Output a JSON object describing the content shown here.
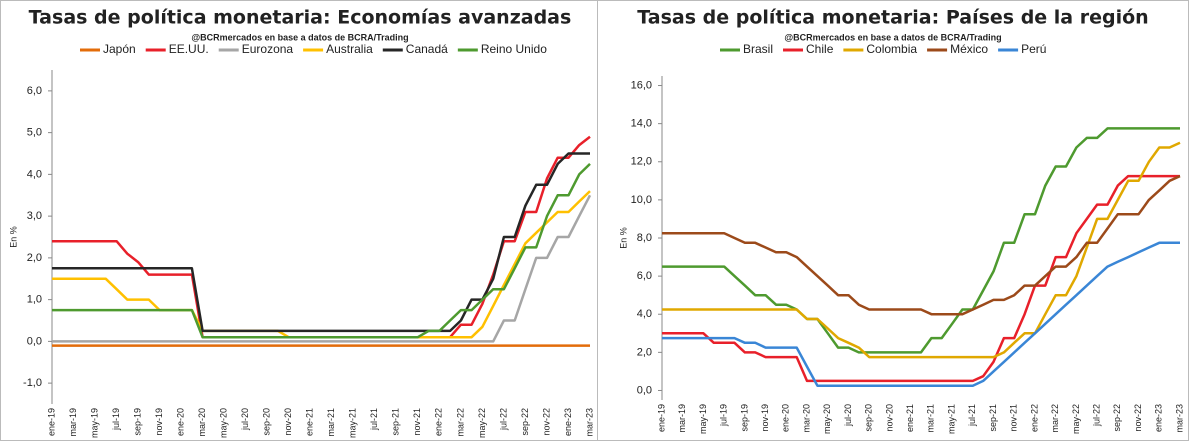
{
  "chart_data": [
    {
      "type": "line",
      "title": "Tasas de política monetaria: Economías avanzadas",
      "subtitle": "@BCRmercados en base a datos de BCRA/Trading",
      "y_label": "En %",
      "categories": [
        "ene-19",
        null,
        "mar-19",
        null,
        "may-19",
        null,
        "jul-19",
        null,
        "sep-19",
        null,
        "nov-19",
        null,
        "ene-20",
        null,
        "mar-20",
        null,
        "may-20",
        null,
        "jul-20",
        null,
        "sep-20",
        null,
        "nov-20",
        null,
        "ene-21",
        null,
        "mar-21",
        null,
        "may-21",
        null,
        "jul-21",
        null,
        "sep-21",
        null,
        "nov-21",
        null,
        "ene-22",
        null,
        "mar-22",
        null,
        "may-22",
        null,
        "jul-22",
        null,
        "sep-22",
        null,
        "nov-22",
        null,
        "ene-23",
        null,
        "mar-23"
      ],
      "ylim": [
        -1.5,
        6.5
      ],
      "yticks": [
        {
          "value": -1,
          "label": "-1,0"
        },
        {
          "value": 0,
          "label": "0,0"
        },
        {
          "value": 1,
          "label": "1,0"
        },
        {
          "value": 2,
          "label": "2,0"
        },
        {
          "value": 3,
          "label": "3,0"
        },
        {
          "value": 4,
          "label": "4,0"
        },
        {
          "value": 5,
          "label": "5,0"
        },
        {
          "value": 6,
          "label": "6,0"
        }
      ],
      "series": [
        {
          "name": "Japón",
          "color": "#e36c0a",
          "values": [
            -0.1,
            -0.1,
            -0.1,
            -0.1,
            -0.1,
            -0.1,
            -0.1,
            -0.1,
            -0.1,
            -0.1,
            -0.1,
            -0.1,
            -0.1,
            -0.1,
            -0.1,
            -0.1,
            -0.1,
            -0.1,
            -0.1,
            -0.1,
            -0.1,
            -0.1,
            -0.1,
            -0.1,
            -0.1,
            -0.1,
            -0.1,
            -0.1,
            -0.1,
            -0.1,
            -0.1,
            -0.1,
            -0.1,
            -0.1,
            -0.1,
            -0.1,
            -0.1,
            -0.1,
            -0.1,
            -0.1,
            -0.1,
            -0.1,
            -0.1,
            -0.1,
            -0.1,
            -0.1,
            -0.1,
            -0.1,
            -0.1,
            -0.1,
            -0.1
          ]
        },
        {
          "name": "EE.UU.",
          "color": "#e8202a",
          "values": [
            2.4,
            2.4,
            2.4,
            2.4,
            2.4,
            2.4,
            2.4,
            2.1,
            1.9,
            1.6,
            1.6,
            1.6,
            1.6,
            1.6,
            0.1,
            0.1,
            0.1,
            0.1,
            0.1,
            0.1,
            0.1,
            0.1,
            0.1,
            0.1,
            0.1,
            0.1,
            0.1,
            0.1,
            0.1,
            0.1,
            0.1,
            0.1,
            0.1,
            0.1,
            0.1,
            0.1,
            0.1,
            0.1,
            0.4,
            0.4,
            0.9,
            1.6,
            2.4,
            2.4,
            3.1,
            3.1,
            3.9,
            4.4,
            4.4,
            4.7,
            4.9
          ]
        },
        {
          "name": "Eurozona",
          "color": "#a6a6a6",
          "values": [
            0,
            0,
            0,
            0,
            0,
            0,
            0,
            0,
            0,
            0,
            0,
            0,
            0,
            0,
            0,
            0,
            0,
            0,
            0,
            0,
            0,
            0,
            0,
            0,
            0,
            0,
            0,
            0,
            0,
            0,
            0,
            0,
            0,
            0,
            0,
            0,
            0,
            0,
            0,
            0,
            0,
            0,
            0.5,
            0.5,
            1.25,
            2.0,
            2.0,
            2.5,
            2.5,
            3.0,
            3.5
          ]
        },
        {
          "name": "Australia",
          "color": "#ffc000",
          "values": [
            1.5,
            1.5,
            1.5,
            1.5,
            1.5,
            1.5,
            1.25,
            1.0,
            1.0,
            1.0,
            0.75,
            0.75,
            0.75,
            0.75,
            0.25,
            0.25,
            0.25,
            0.25,
            0.25,
            0.25,
            0.25,
            0.25,
            0.1,
            0.1,
            0.1,
            0.1,
            0.1,
            0.1,
            0.1,
            0.1,
            0.1,
            0.1,
            0.1,
            0.1,
            0.1,
            0.1,
            0.1,
            0.1,
            0.1,
            0.1,
            0.35,
            0.85,
            1.35,
            1.85,
            2.35,
            2.6,
            2.85,
            3.1,
            3.1,
            3.35,
            3.6
          ]
        },
        {
          "name": "Canadá",
          "color": "#262626",
          "values": [
            1.75,
            1.75,
            1.75,
            1.75,
            1.75,
            1.75,
            1.75,
            1.75,
            1.75,
            1.75,
            1.75,
            1.75,
            1.75,
            1.75,
            0.25,
            0.25,
            0.25,
            0.25,
            0.25,
            0.25,
            0.25,
            0.25,
            0.25,
            0.25,
            0.25,
            0.25,
            0.25,
            0.25,
            0.25,
            0.25,
            0.25,
            0.25,
            0.25,
            0.25,
            0.25,
            0.25,
            0.25,
            0.25,
            0.5,
            1.0,
            1.0,
            1.5,
            2.5,
            2.5,
            3.25,
            3.75,
            3.75,
            4.25,
            4.5,
            4.5,
            4.5
          ]
        },
        {
          "name": "Reino Unido",
          "color": "#4e9a2f",
          "values": [
            0.75,
            0.75,
            0.75,
            0.75,
            0.75,
            0.75,
            0.75,
            0.75,
            0.75,
            0.75,
            0.75,
            0.75,
            0.75,
            0.75,
            0.1,
            0.1,
            0.1,
            0.1,
            0.1,
            0.1,
            0.1,
            0.1,
            0.1,
            0.1,
            0.1,
            0.1,
            0.1,
            0.1,
            0.1,
            0.1,
            0.1,
            0.1,
            0.1,
            0.1,
            0.1,
            0.25,
            0.25,
            0.5,
            0.75,
            0.75,
            1.0,
            1.25,
            1.25,
            1.75,
            2.25,
            2.25,
            3.0,
            3.5,
            3.5,
            4.0,
            4.25
          ]
        }
      ]
    },
    {
      "type": "line",
      "title": "Tasas de política monetaria: Países de la región",
      "subtitle": "@BCRmercados en base a datos de BCRA/Trading",
      "y_label": "En %",
      "categories": [
        "ene-19",
        null,
        "mar-19",
        null,
        "may-19",
        null,
        "jul-19",
        null,
        "sep-19",
        null,
        "nov-19",
        null,
        "ene-20",
        null,
        "mar-20",
        null,
        "may-20",
        null,
        "jul-20",
        null,
        "sep-20",
        null,
        "nov-20",
        null,
        "ene-21",
        null,
        "mar-21",
        null,
        "may-21",
        null,
        "jul-21",
        null,
        "sep-21",
        null,
        "nov-21",
        null,
        "ene-22",
        null,
        "mar-22",
        null,
        "may-22",
        null,
        "jul-22",
        null,
        "sep-22",
        null,
        "nov-22",
        null,
        "ene-23",
        null,
        "mar-23"
      ],
      "ylim": [
        -0.5,
        16.5
      ],
      "yticks": [
        {
          "value": 0,
          "label": "0,0"
        },
        {
          "value": 2,
          "label": "2,0"
        },
        {
          "value": 4,
          "label": "4,0"
        },
        {
          "value": 6,
          "label": "6,0"
        },
        {
          "value": 8,
          "label": "8,0"
        },
        {
          "value": 10,
          "label": "10,0"
        },
        {
          "value": 12,
          "label": "12,0"
        },
        {
          "value": 14,
          "label": "14,0"
        },
        {
          "value": 16,
          "label": "16,0"
        }
      ],
      "series": [
        {
          "name": "Brasil",
          "color": "#4e9a2f",
          "values": [
            6.5,
            6.5,
            6.5,
            6.5,
            6.5,
            6.5,
            6.5,
            6.0,
            5.5,
            5.0,
            5.0,
            4.5,
            4.5,
            4.25,
            3.75,
            3.75,
            3.0,
            2.25,
            2.25,
            2.0,
            2.0,
            2.0,
            2.0,
            2.0,
            2.0,
            2.0,
            2.75,
            2.75,
            3.5,
            4.25,
            4.25,
            5.25,
            6.25,
            7.75,
            7.75,
            9.25,
            9.25,
            10.75,
            11.75,
            11.75,
            12.75,
            13.25,
            13.25,
            13.75,
            13.75,
            13.75,
            13.75,
            13.75,
            13.75,
            13.75,
            13.75
          ]
        },
        {
          "name": "Chile",
          "color": "#e8202a",
          "values": [
            3.0,
            3.0,
            3.0,
            3.0,
            3.0,
            2.5,
            2.5,
            2.5,
            2.0,
            2.0,
            1.75,
            1.75,
            1.75,
            1.75,
            0.5,
            0.5,
            0.5,
            0.5,
            0.5,
            0.5,
            0.5,
            0.5,
            0.5,
            0.5,
            0.5,
            0.5,
            0.5,
            0.5,
            0.5,
            0.5,
            0.5,
            0.75,
            1.5,
            2.75,
            2.75,
            4.0,
            5.5,
            5.5,
            7.0,
            7.0,
            8.25,
            9.0,
            9.75,
            9.75,
            10.75,
            11.25,
            11.25,
            11.25,
            11.25,
            11.25,
            11.25
          ]
        },
        {
          "name": "Colombia",
          "color": "#e0a800",
          "values": [
            4.25,
            4.25,
            4.25,
            4.25,
            4.25,
            4.25,
            4.25,
            4.25,
            4.25,
            4.25,
            4.25,
            4.25,
            4.25,
            4.25,
            3.75,
            3.75,
            3.25,
            2.75,
            2.5,
            2.25,
            1.75,
            1.75,
            1.75,
            1.75,
            1.75,
            1.75,
            1.75,
            1.75,
            1.75,
            1.75,
            1.75,
            1.75,
            1.75,
            2.0,
            2.5,
            3.0,
            3.0,
            4.0,
            5.0,
            5.0,
            6.0,
            7.5,
            9.0,
            9.0,
            10.0,
            11.0,
            11.0,
            12.0,
            12.75,
            12.75,
            13.0
          ]
        },
        {
          "name": "México",
          "color": "#9c4a1a",
          "values": [
            8.25,
            8.25,
            8.25,
            8.25,
            8.25,
            8.25,
            8.25,
            8.0,
            7.75,
            7.75,
            7.5,
            7.25,
            7.25,
            7.0,
            6.5,
            6.0,
            5.5,
            5.0,
            5.0,
            4.5,
            4.25,
            4.25,
            4.25,
            4.25,
            4.25,
            4.25,
            4.0,
            4.0,
            4.0,
            4.0,
            4.25,
            4.5,
            4.75,
            4.75,
            5.0,
            5.5,
            5.5,
            6.0,
            6.5,
            6.5,
            7.0,
            7.75,
            7.75,
            8.5,
            9.25,
            9.25,
            9.25,
            10.0,
            10.5,
            11.0,
            11.25
          ]
        },
        {
          "name": "Perú",
          "color": "#3a86d6",
          "values": [
            2.75,
            2.75,
            2.75,
            2.75,
            2.75,
            2.75,
            2.75,
            2.75,
            2.5,
            2.5,
            2.25,
            2.25,
            2.25,
            2.25,
            1.25,
            0.25,
            0.25,
            0.25,
            0.25,
            0.25,
            0.25,
            0.25,
            0.25,
            0.25,
            0.25,
            0.25,
            0.25,
            0.25,
            0.25,
            0.25,
            0.25,
            0.5,
            1.0,
            1.5,
            2.0,
            2.5,
            3.0,
            3.5,
            4.0,
            4.5,
            5.0,
            5.5,
            6.0,
            6.5,
            6.75,
            7.0,
            7.25,
            7.5,
            7.75,
            7.75,
            7.75
          ]
        }
      ]
    }
  ]
}
